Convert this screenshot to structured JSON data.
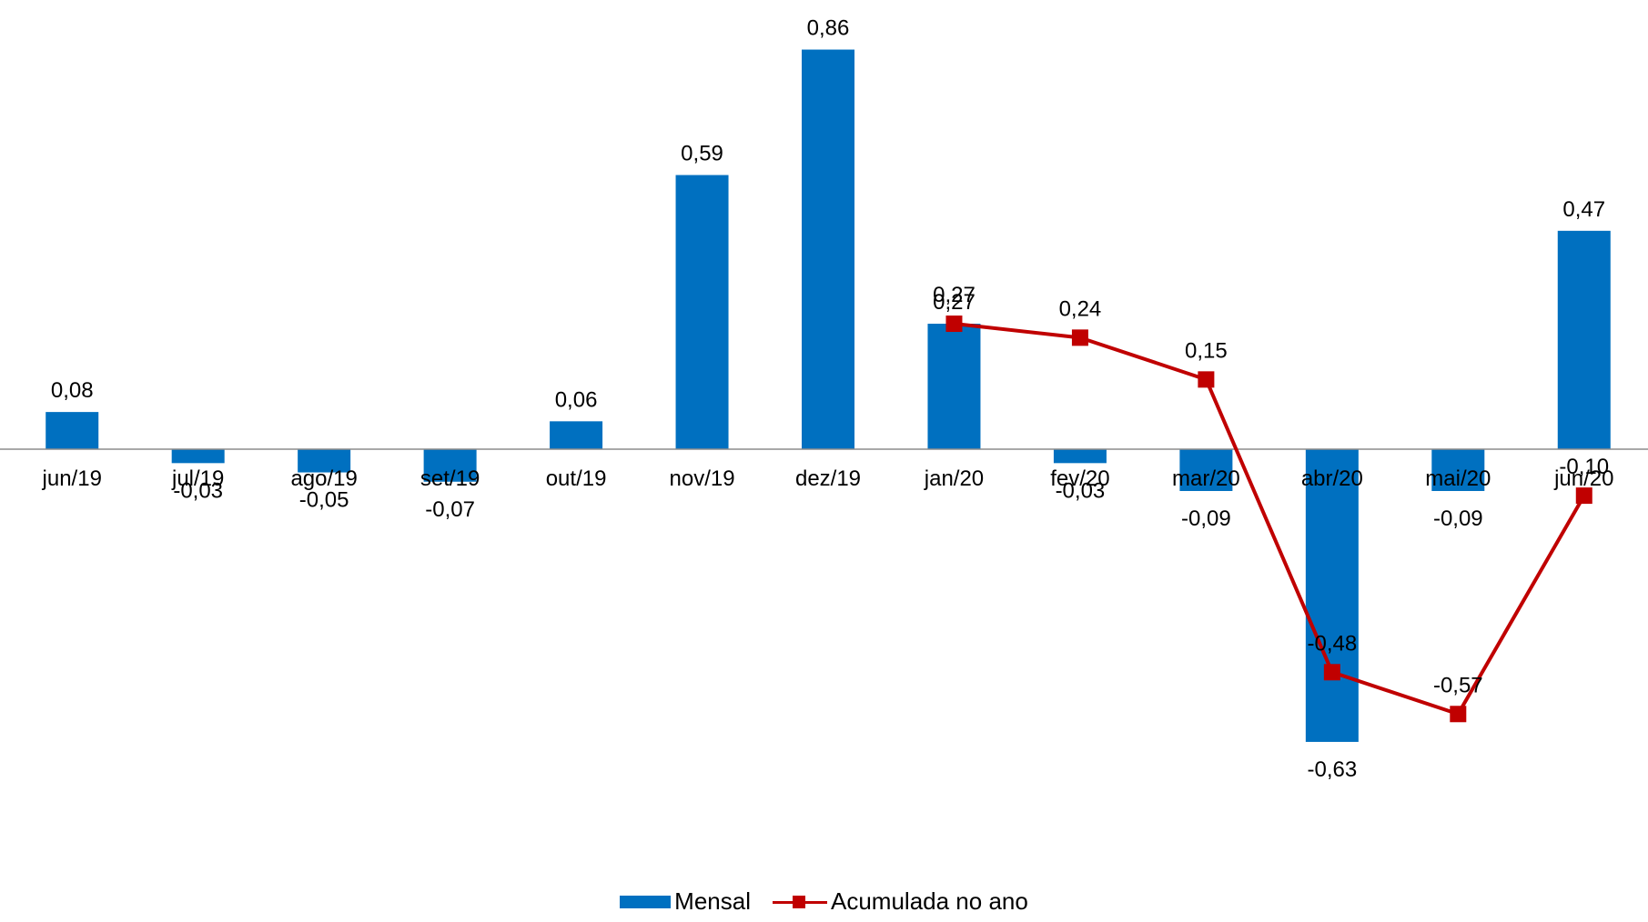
{
  "chart_data": {
    "type": "bar",
    "categories": [
      "jun/19",
      "jul/19",
      "ago/19",
      "set/19",
      "out/19",
      "nov/19",
      "dez/19",
      "jan/20",
      "fev/20",
      "mar/20",
      "abr/20",
      "mai/20",
      "jun/20"
    ],
    "series": [
      {
        "name": "Mensal",
        "type": "bar",
        "color": "#0070C0",
        "values": [
          0.08,
          -0.03,
          -0.05,
          -0.07,
          0.06,
          0.59,
          0.86,
          0.27,
          -0.03,
          -0.09,
          -0.63,
          -0.09,
          0.47
        ],
        "labels": [
          "0,08",
          "-0,03",
          "-0,05",
          "-0,07",
          "0,06",
          "0,59",
          "0,86",
          "0,27",
          "-0,03",
          "-0,09",
          "-0,63",
          "-0,09",
          "0,47"
        ]
      },
      {
        "name": "Acumulada no ano",
        "type": "line",
        "color": "#C00000",
        "values": [
          null,
          null,
          null,
          null,
          null,
          null,
          null,
          0.27,
          0.24,
          0.15,
          -0.48,
          -0.57,
          -0.1
        ],
        "labels": [
          "",
          "",
          "",
          "",
          "",
          "",
          "",
          "0,27",
          "0,24",
          "0,15",
          "-0,48",
          "-0,57",
          "-0,10"
        ]
      }
    ],
    "ylim": [
      -0.75,
      0.95
    ],
    "grid": false,
    "legend_position": "bottom",
    "title": "",
    "xlabel": "",
    "ylabel": ""
  },
  "legend": {
    "bar_label": "Mensal",
    "line_label": "Acumulada no ano"
  }
}
